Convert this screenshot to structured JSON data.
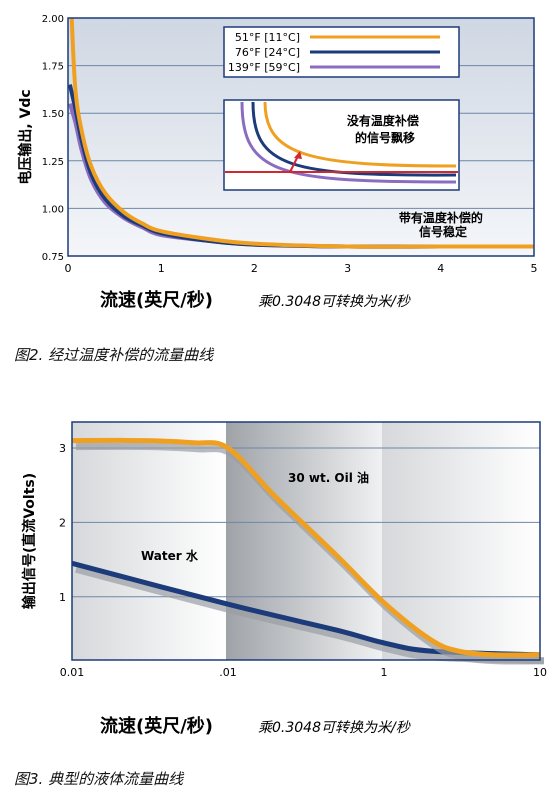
{
  "chart_data": [
    {
      "type": "line",
      "xlabel": "流速(英尺/秒)",
      "xlabel_note": "乘0.3048可转换为米/秒",
      "ylabel": "电压输出, Vdc",
      "xlim": [
        0,
        5
      ],
      "ylim": [
        0.75,
        2.0
      ],
      "xticks": [
        "0",
        "1",
        "2",
        "3",
        "4",
        "5"
      ],
      "yticks": [
        "0.75",
        "1.00",
        "1.25",
        "1.50",
        "1.75",
        "2.00"
      ],
      "grid": "horizontal",
      "legend_position": "top-right",
      "series": [
        {
          "name": "51°F [11°C]",
          "color": "#f0a020",
          "x": [
            0.04,
            0.08,
            0.15,
            0.25,
            0.4,
            0.6,
            0.8,
            1.0,
            1.5,
            2.0,
            3.0,
            4.0,
            5.0
          ],
          "y": [
            2.0,
            1.62,
            1.4,
            1.22,
            1.08,
            0.98,
            0.92,
            0.88,
            0.84,
            0.815,
            0.8,
            0.8,
            0.8
          ]
        },
        {
          "name": "76°F [24°C]",
          "color": "#1c3b7a",
          "x": [
            0.02,
            0.08,
            0.15,
            0.25,
            0.4,
            0.6,
            0.8,
            1.0,
            1.5,
            2.0,
            3.0,
            4.0,
            5.0
          ],
          "y": [
            1.65,
            1.52,
            1.35,
            1.18,
            1.05,
            0.96,
            0.91,
            0.87,
            0.83,
            0.81,
            0.8,
            0.8,
            0.8
          ]
        },
        {
          "name": "139°F [59°C]",
          "color": "#8a6cc0",
          "x": [
            0.02,
            0.08,
            0.15,
            0.25,
            0.4,
            0.6,
            0.8,
            1.0,
            1.5,
            2.0,
            3.0,
            4.0,
            5.0
          ],
          "y": [
            1.55,
            1.45,
            1.3,
            1.15,
            1.03,
            0.95,
            0.9,
            0.86,
            0.83,
            0.81,
            0.8,
            0.8,
            0.8
          ]
        }
      ],
      "annotations": {
        "inset": "没有温度补偿的信号飘移",
        "main": "带有温度补偿的信号稳定"
      }
    },
    {
      "type": "line",
      "xlabel": "流速(英尺/秒)",
      "xlabel_note": "乘0.3048可转换为米/秒",
      "ylabel": "输出信号(直流Volts)",
      "xscale": "log",
      "xlim": [
        0.01,
        10
      ],
      "ylim": [
        0.15,
        3.35
      ],
      "xticks": [
        "0.01",
        ".01",
        "1",
        "10"
      ],
      "yticks": [
        "1",
        "2",
        "3"
      ],
      "grid": "horizontal",
      "series": [
        {
          "name": "Water 水",
          "color": "#1c3b7a",
          "x": [
            0.01,
            0.1,
            0.5,
            1.0,
            2.0,
            10.0
          ],
          "y": [
            1.45,
            0.9,
            0.55,
            0.38,
            0.27,
            0.22
          ]
        },
        {
          "name": "30 wt. Oil 油",
          "color": "#f0a020",
          "x": [
            0.01,
            0.03,
            0.06,
            0.1,
            0.2,
            0.5,
            1.0,
            2.0,
            3.0,
            5.0,
            10.0
          ],
          "y": [
            3.1,
            3.1,
            3.07,
            3.0,
            2.35,
            1.55,
            0.92,
            0.42,
            0.27,
            0.22,
            0.22
          ]
        }
      ]
    }
  ],
  "captions": {
    "figure2": "图2. 经过温度补偿的流量曲线",
    "figure3": "图3. 典型的液体流量曲线"
  },
  "colors": {
    "orange": "#f0a020",
    "navy": "#1c3b7a",
    "purple": "#8a6cc0",
    "grid": "#6f86a8"
  }
}
